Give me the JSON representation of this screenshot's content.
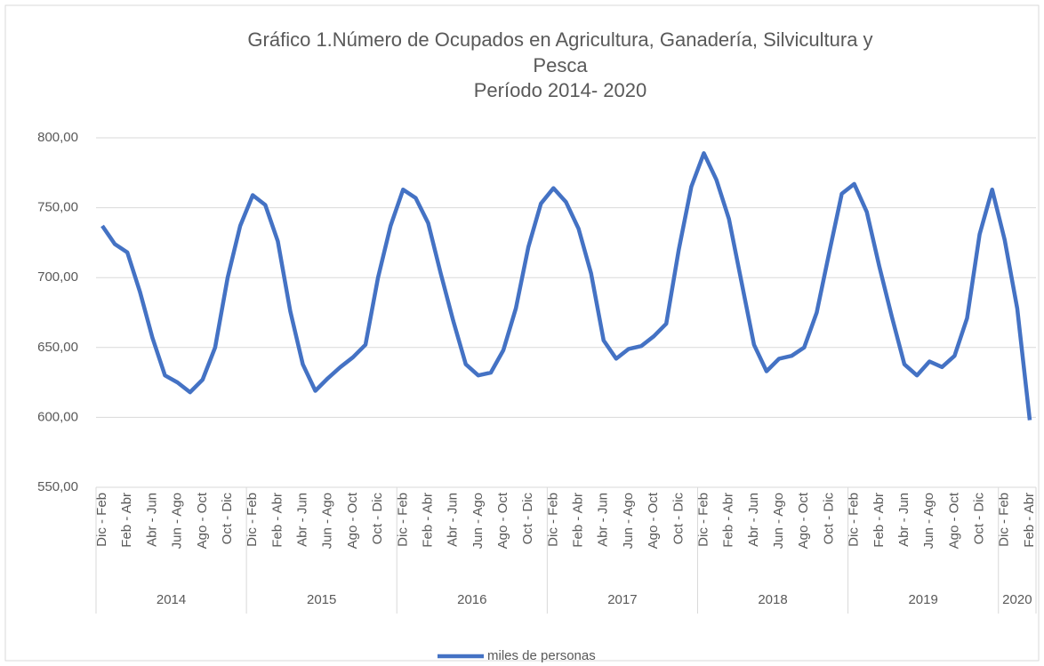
{
  "chart_data": {
    "type": "line",
    "title_lines": [
      "Gráfico 1.Número de Ocupados en Agricultura, Ganadería, Silvicultura y",
      "Pesca",
      "Período 2014- 2020"
    ],
    "categories": [
      "Dic - Feb",
      null,
      "Feb - Abr",
      null,
      "Abr - Jun",
      null,
      "Jun - Ago",
      null,
      "Ago - Oct",
      null,
      "Oct - Dic",
      null,
      "Dic - Feb",
      null,
      "Feb - Abr",
      null,
      "Abr - Jun",
      null,
      "Jun - Ago",
      null,
      "Ago - Oct",
      null,
      "Oct - Dic",
      null,
      "Dic - Feb",
      null,
      "Feb - Abr",
      null,
      "Abr - Jun",
      null,
      "Jun - Ago",
      null,
      "Ago - Oct",
      null,
      "Oct - Dic",
      null,
      "Dic - Feb",
      null,
      "Feb - Abr",
      null,
      "Abr - Jun",
      null,
      "Jun - Ago",
      null,
      "Ago - Oct",
      null,
      "Oct - Dic",
      null,
      "Dic - Feb",
      null,
      "Feb - Abr",
      null,
      "Abr - Jun",
      null,
      "Jun - Ago",
      null,
      "Ago - Oct",
      null,
      "Oct - Dic",
      null,
      "Dic - Feb",
      null,
      "Feb - Abr",
      null,
      "Abr - Jun",
      null,
      "Jun - Ago",
      null,
      "Ago - Oct",
      null,
      "Oct - Dic",
      null,
      "Dic - Feb",
      null,
      "Feb - Abr"
    ],
    "year_groups": [
      {
        "label": "2014",
        "size": 12
      },
      {
        "label": "2015",
        "size": 12
      },
      {
        "label": "2016",
        "size": 12
      },
      {
        "label": "2017",
        "size": 12
      },
      {
        "label": "2018",
        "size": 12
      },
      {
        "label": "2019",
        "size": 12
      },
      {
        "label": "2020",
        "size": 3
      }
    ],
    "series": [
      {
        "name": "miles de personas",
        "color": "#4472c4",
        "values": [
          737,
          724,
          718,
          690,
          657,
          630,
          625,
          618,
          627,
          650,
          700,
          737,
          759,
          752,
          726,
          676,
          638,
          619,
          628,
          636,
          643,
          652,
          700,
          737,
          763,
          757,
          739,
          703,
          669,
          638,
          630,
          632,
          648,
          678,
          722,
          753,
          764,
          754,
          735,
          703,
          655,
          642,
          649,
          651,
          658,
          667,
          720,
          765,
          789,
          770,
          742,
          697,
          652,
          633,
          642,
          644,
          650,
          675,
          718,
          760,
          767,
          747,
          708,
          672,
          638,
          630,
          640,
          636,
          644,
          671,
          731,
          763,
          727,
          678,
          598
        ]
      }
    ],
    "ylim": [
      550,
      800
    ],
    "yticks": [
      {
        "value": 550,
        "label": "550,00"
      },
      {
        "value": 600,
        "label": "600,00"
      },
      {
        "value": 650,
        "label": "650,00"
      },
      {
        "value": 700,
        "label": "700,00"
      },
      {
        "value": 750,
        "label": "750,00"
      },
      {
        "value": 800,
        "label": "800,00"
      }
    ],
    "grid": true,
    "legend": "bottom"
  }
}
